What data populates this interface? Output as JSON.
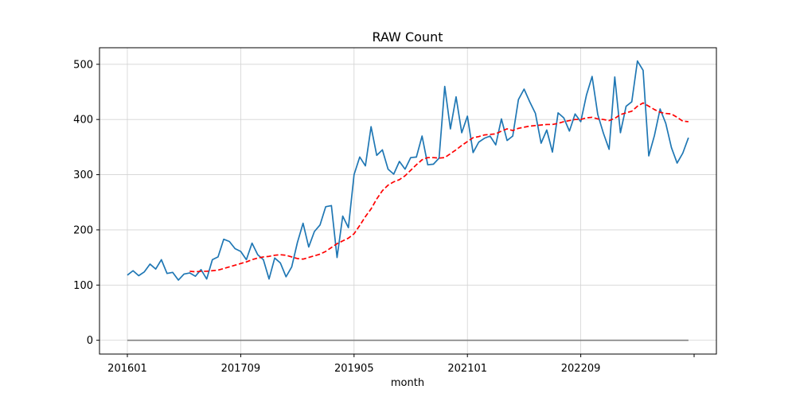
{
  "chart_data": {
    "type": "line",
    "title": "RAW Count",
    "xlabel": "month",
    "ylabel": "",
    "grid": true,
    "ylim": [
      -25,
      530
    ],
    "x_start": "201601",
    "x_ticks": [
      "201601",
      "201709",
      "201905",
      "202101",
      "202209",
      ""
    ],
    "y_ticks": [
      0,
      100,
      200,
      300,
      400,
      500
    ],
    "series": [
      {
        "name": "",
        "style": "solid",
        "color": "#1f77b4",
        "values": [
          118,
          126,
          117,
          124,
          138,
          129,
          146,
          121,
          123,
          109,
          120,
          122,
          116,
          128,
          111,
          146,
          151,
          183,
          179,
          166,
          161,
          146,
          176,
          155,
          146,
          111,
          149,
          140,
          115,
          133,
          177,
          212,
          169,
          197,
          209,
          242,
          244,
          150,
          225,
          204,
          300,
          332,
          316,
          387,
          335,
          345,
          310,
          301,
          324,
          310,
          331,
          332,
          370,
          318,
          319,
          330,
          460,
          383,
          441,
          376,
          406,
          340,
          359,
          366,
          370,
          354,
          401,
          362,
          370,
          436,
          455,
          432,
          411,
          357,
          381,
          341,
          412,
          403,
          379,
          410,
          396,
          444,
          478,
          409,
          375,
          346,
          477,
          376,
          424,
          432,
          506,
          489,
          334,
          371,
          419,
          393,
          349,
          321,
          339,
          367
        ]
      },
      {
        "name": "",
        "style": "dashed",
        "color": "#ff0000",
        "values": [
          null,
          null,
          null,
          null,
          null,
          null,
          null,
          null,
          null,
          null,
          null,
          125,
          124,
          125,
          125,
          126,
          127,
          130,
          133,
          136,
          139,
          142,
          146,
          149,
          151,
          152,
          154,
          155,
          154,
          151,
          148,
          147,
          150,
          153,
          156,
          161,
          168,
          175,
          180,
          185,
          193,
          208,
          224,
          238,
          256,
          271,
          281,
          287,
          291,
          298,
          308,
          318,
          327,
          331,
          331,
          330,
          331,
          338,
          345,
          353,
          360,
          367,
          369,
          372,
          373,
          374,
          379,
          383,
          380,
          384,
          386,
          388,
          389,
          390,
          391,
          391,
          393,
          396,
          398,
          400,
          400,
          403,
          404,
          401,
          400,
          398,
          402,
          409,
          412,
          415,
          424,
          430,
          424,
          418,
          413,
          411,
          410,
          404,
          397,
          396
        ]
      }
    ],
    "baseline": {
      "name": "",
      "color": "#808080",
      "value": 0
    }
  }
}
